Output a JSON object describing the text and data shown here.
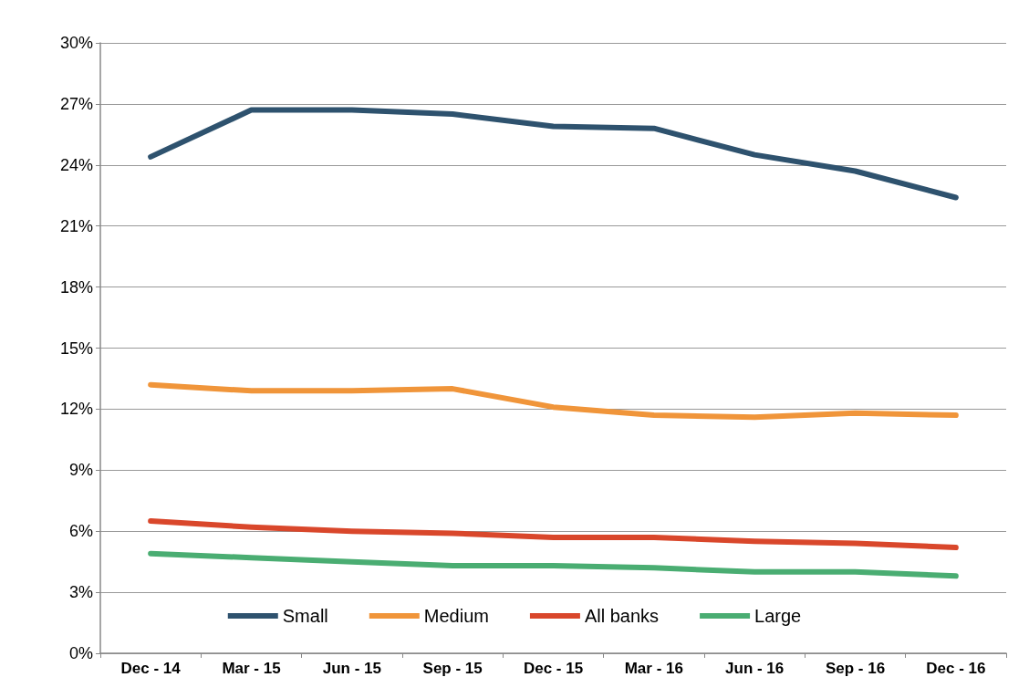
{
  "chart_data": {
    "type": "line",
    "categories": [
      "Dec - 14",
      "Mar - 15",
      "Jun - 15",
      "Sep - 15",
      "Dec - 15",
      "Mar - 16",
      "Jun - 16",
      "Sep - 16",
      "Dec - 16"
    ],
    "series": [
      {
        "name": "Small",
        "color": "#2e526e",
        "values": [
          24.4,
          26.7,
          26.7,
          26.5,
          25.9,
          25.8,
          24.5,
          23.7,
          22.4
        ]
      },
      {
        "name": "Medium",
        "color": "#f0953a",
        "values": [
          13.2,
          12.9,
          12.9,
          13.0,
          12.1,
          11.7,
          11.6,
          11.8,
          11.7
        ]
      },
      {
        "name": "All banks",
        "color": "#d9472b",
        "values": [
          6.5,
          6.2,
          6.0,
          5.9,
          5.7,
          5.7,
          5.5,
          5.4,
          5.2
        ]
      },
      {
        "name": "Large",
        "color": "#4aad72",
        "values": [
          4.9,
          4.7,
          4.5,
          4.3,
          4.3,
          4.2,
          4.0,
          4.0,
          3.8
        ]
      }
    ],
    "ylim": [
      0,
      30
    ],
    "yticks": [
      {
        "value": 0,
        "label": "0%"
      },
      {
        "value": 3,
        "label": "3%"
      },
      {
        "value": 6,
        "label": "6%"
      },
      {
        "value": 9,
        "label": "9%"
      },
      {
        "value": 12,
        "label": "12%"
      },
      {
        "value": 15,
        "label": "15%"
      },
      {
        "value": 18,
        "label": "18%"
      },
      {
        "value": 21,
        "label": "21%"
      },
      {
        "value": 24,
        "label": "24%"
      },
      {
        "value": 27,
        "label": "27%"
      },
      {
        "value": 30,
        "label": "30%"
      }
    ],
    "grid": "y",
    "legend": "bottom",
    "marker": "none",
    "line_style": "solid"
  }
}
